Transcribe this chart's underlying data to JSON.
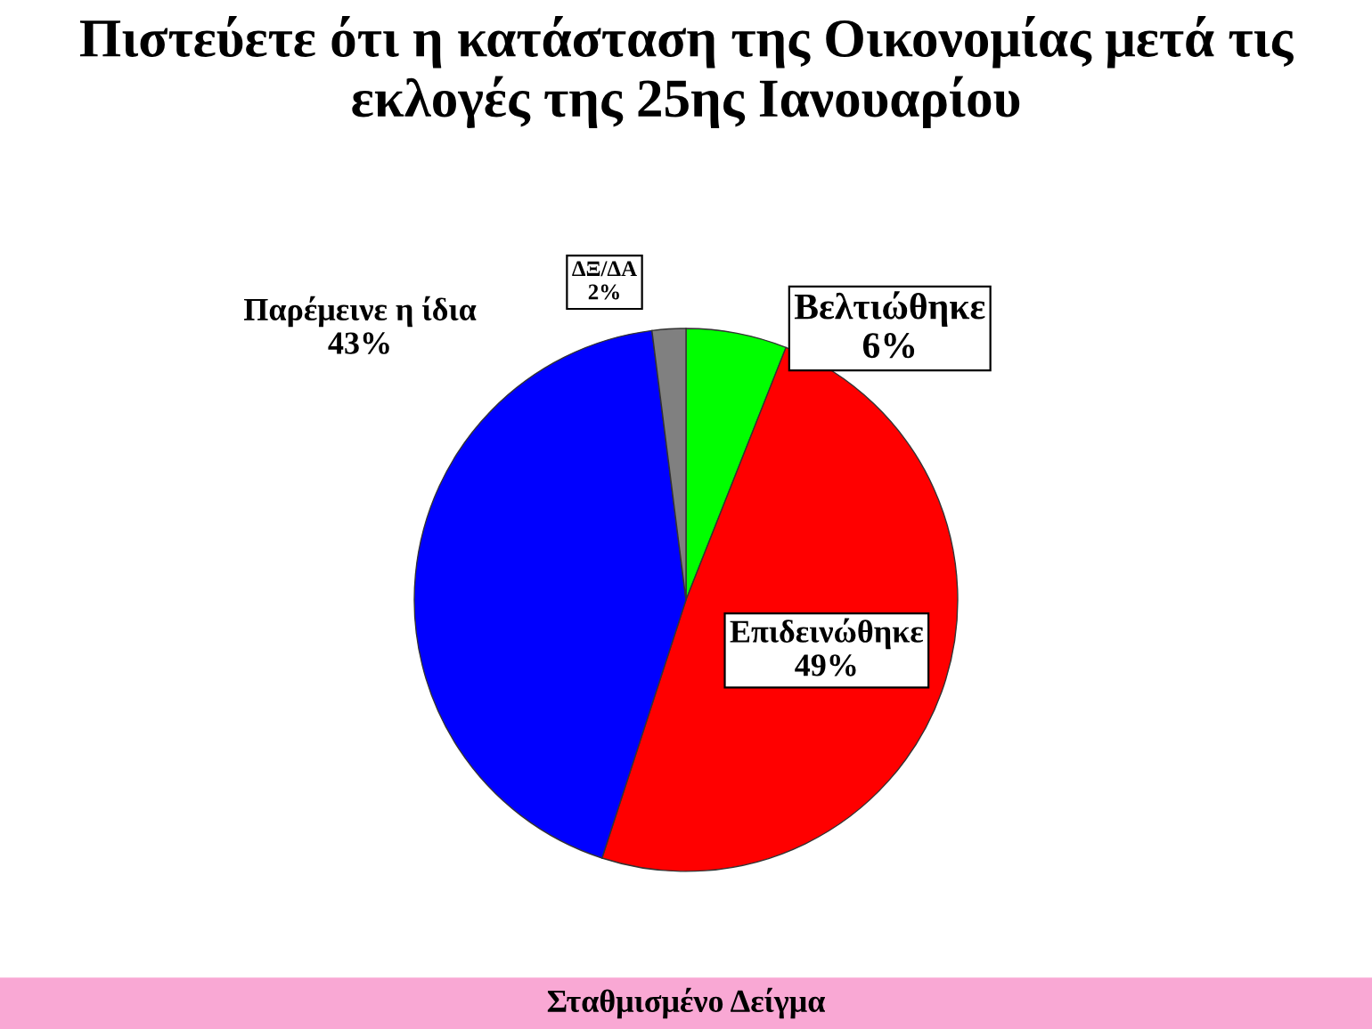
{
  "chart_data": {
    "type": "pie",
    "title": "Πιστεύετε ότι η κατάσταση της Οικονομίας μετά τις εκλογές της 25ης Ιανουαρίου",
    "categories": [
      "Βελτιώθηκε",
      "Επιδεινώθηκε",
      "Παρέμεινε η ίδια",
      "ΔΞ/ΔΑ"
    ],
    "values": [
      6,
      49,
      43,
      2
    ],
    "colors": [
      "#00ff00",
      "#ff0000",
      "#0000ff",
      "#808080"
    ],
    "value_labels": [
      "6%",
      "49%",
      "43%",
      "2%"
    ],
    "annotations": [
      "Σταθμισμένο Δείγμα"
    ],
    "legend": false
  }
}
